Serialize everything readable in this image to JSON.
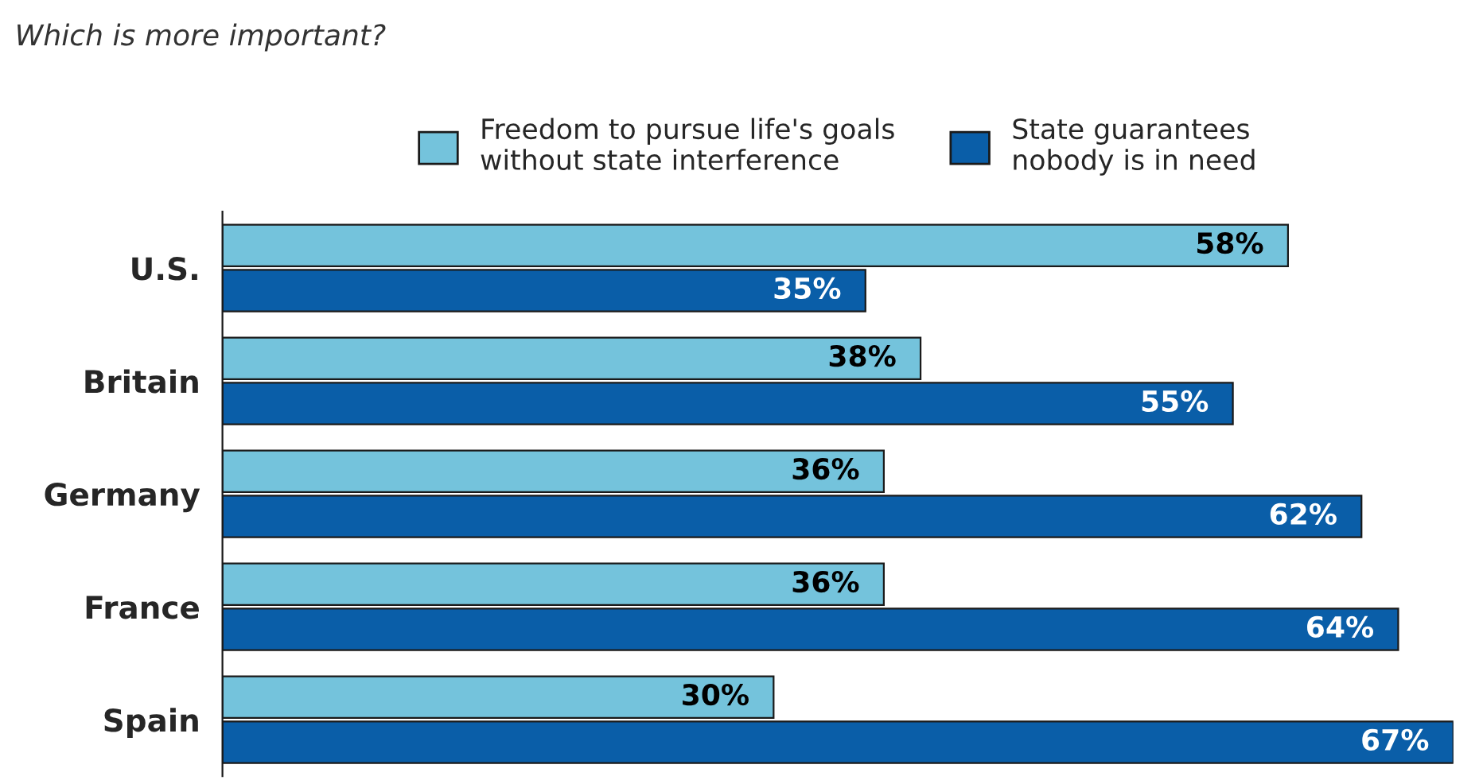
{
  "chart_data": {
    "type": "bar",
    "orientation": "horizontal",
    "title": "Which is more important?",
    "categories": [
      "U.S.",
      "Britain",
      "Germany",
      "France",
      "Spain"
    ],
    "series": [
      {
        "name": "Freedom to pursue life's goals without state interference",
        "color": "#74c3dc",
        "values": [
          58,
          38,
          36,
          36,
          30
        ],
        "value_labels": [
          "58%",
          "38%",
          "36%",
          "36%",
          "30%"
        ]
      },
      {
        "name": "State guarantees nobody is in need",
        "color": "#0a5ea8",
        "values": [
          35,
          55,
          62,
          64,
          67
        ],
        "value_labels": [
          "35%",
          "55%",
          "62%",
          "64%",
          "67%"
        ]
      }
    ],
    "legend": "top",
    "grid": false,
    "tick_labels": "y"
  }
}
